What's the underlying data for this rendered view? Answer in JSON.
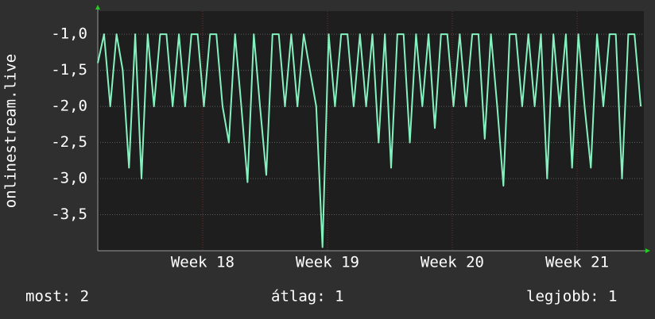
{
  "chart_data": {
    "type": "line",
    "ylabel": "onlinestream.live",
    "x": [
      17.16,
      17.21,
      17.26,
      17.31,
      17.36,
      17.41,
      17.46,
      17.51,
      17.56,
      17.61,
      17.66,
      17.71,
      17.76,
      17.81,
      17.86,
      17.91,
      17.96,
      18.01,
      18.06,
      18.11,
      18.16,
      18.21,
      18.26,
      18.31,
      18.36,
      18.41,
      18.46,
      18.51,
      18.56,
      18.61,
      18.66,
      18.71,
      18.76,
      18.81,
      18.86,
      18.91,
      18.96,
      19.01,
      19.06,
      19.11,
      19.16,
      19.21,
      19.26,
      19.31,
      19.36,
      19.41,
      19.46,
      19.51,
      19.56,
      19.61,
      19.66,
      19.71,
      19.76,
      19.81,
      19.86,
      19.91,
      19.96,
      20.01,
      20.06,
      20.11,
      20.16,
      20.21,
      20.26,
      20.31,
      20.36,
      20.41,
      20.46,
      20.51,
      20.56,
      20.61,
      20.66,
      20.71,
      20.76,
      20.81,
      20.86,
      20.91,
      20.96,
      21.01,
      21.06,
      21.11,
      21.16,
      21.21,
      21.26,
      21.31,
      21.36,
      21.41,
      21.46,
      21.51
    ],
    "series": [
      {
        "color": "#84f2be",
        "values": [
          -1.4,
          -1.0,
          -2.0,
          -1.0,
          -1.5,
          -2.85,
          -1.0,
          -3.0,
          -1.0,
          -2.0,
          -1.0,
          -1.0,
          -2.0,
          -1.0,
          -2.0,
          -1.0,
          -1.0,
          -2.0,
          -1.0,
          -1.0,
          -2.0,
          -2.5,
          -1.0,
          -2.0,
          -3.05,
          -1.0,
          -2.0,
          -2.95,
          -1.0,
          -1.0,
          -2.0,
          -1.0,
          -2.0,
          -1.0,
          -1.5,
          -2.0,
          -3.95,
          -1.0,
          -2.0,
          -1.0,
          -1.0,
          -2.0,
          -1.0,
          -2.0,
          -1.0,
          -2.5,
          -1.0,
          -2.85,
          -1.0,
          -1.0,
          -2.5,
          -1.0,
          -2.0,
          -1.0,
          -2.3,
          -1.0,
          -1.0,
          -2.0,
          -1.0,
          -2.0,
          -1.0,
          -1.0,
          -2.45,
          -1.0,
          -2.0,
          -3.1,
          -1.0,
          -1.0,
          -2.0,
          -1.0,
          -2.0,
          -1.0,
          -3.0,
          -1.0,
          -2.0,
          -1.0,
          -2.85,
          -1.0,
          -2.0,
          -2.85,
          -1.0,
          -2.0,
          -1.0,
          -1.0,
          -3.0,
          -1.0,
          -1.0,
          -2.0
        ]
      }
    ],
    "xlim": [
      17.16,
      21.535
    ],
    "xticks": [
      {
        "value": 18,
        "label": "Week 18"
      },
      {
        "value": 19,
        "label": "Week 19"
      },
      {
        "value": 20,
        "label": "Week 20"
      },
      {
        "value": 21,
        "label": "Week 21"
      }
    ],
    "ylim": [
      -4.0,
      -0.68
    ],
    "yticks": [
      {
        "value": -1.0,
        "label": "-1,0"
      },
      {
        "value": -1.5,
        "label": "-1,5"
      },
      {
        "value": -2.0,
        "label": "-2,0"
      },
      {
        "value": -2.5,
        "label": "-2,5"
      },
      {
        "value": -3.0,
        "label": "-3,0"
      },
      {
        "value": -3.5,
        "label": "-3,5"
      }
    ],
    "grid": true,
    "footer": [
      "most: 2",
      "átlag: 1",
      "legjobb: 1"
    ]
  }
}
